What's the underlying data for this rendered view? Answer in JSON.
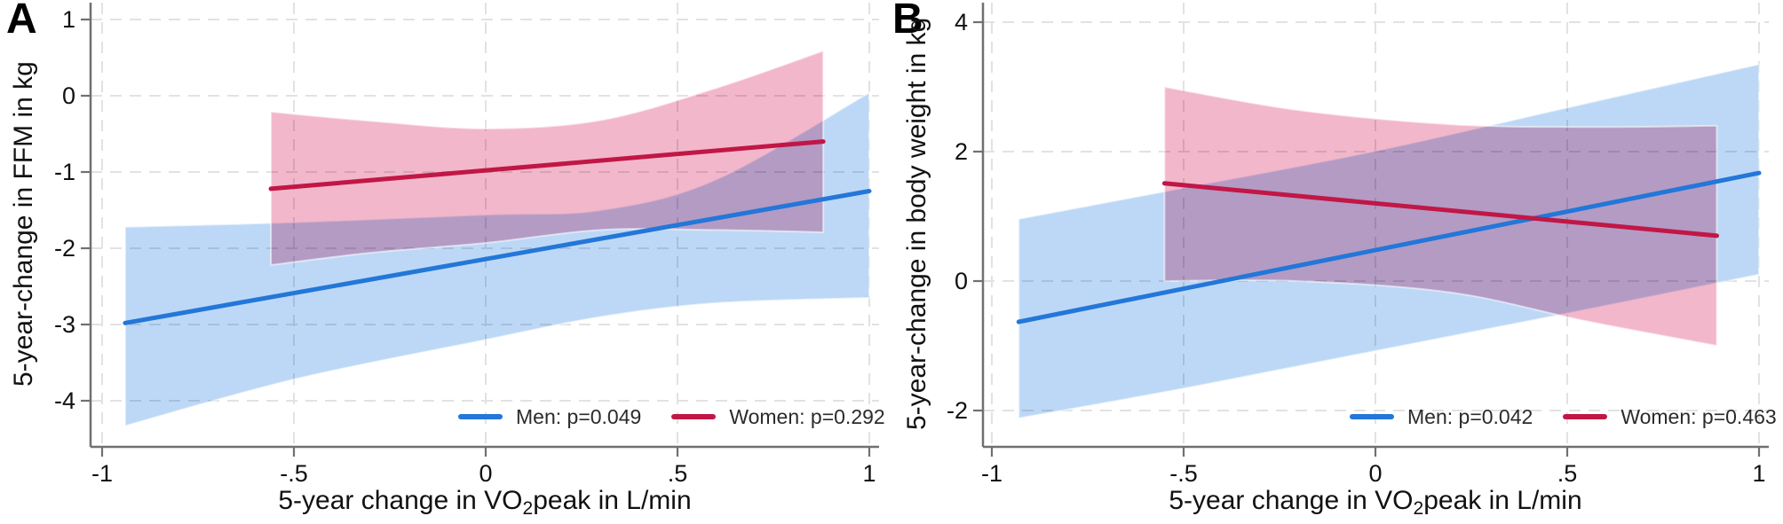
{
  "figure": {
    "background": "#ffffff",
    "colors": {
      "men_line": "#2377d8",
      "women_line": "#c11746",
      "men_band": "#bdd8f6",
      "women_band": "#f2b7cb",
      "grid": "#e2e2e2",
      "axis": "#707070",
      "tick_text": "#111111",
      "legend_text": "#2b2b2b"
    }
  },
  "chart_data": [
    {
      "type": "line",
      "panel": "A",
      "xlabel": "5-year change in VO₂peak in L/min",
      "xlabel_parts": {
        "pre": "5-year change in VO",
        "sub": "2",
        "post": "peak in L/min"
      },
      "ylabel": "5-year-change in FFM in kg",
      "xlim": [
        -1.03,
        1.03
      ],
      "ylim": [
        -4.6,
        1.22
      ],
      "grid": true,
      "legend_position": "inside bottom-right",
      "x_ticks": {
        "values": [
          -1,
          -0.5,
          0,
          0.5,
          1
        ],
        "labels": [
          "-1",
          "-.5",
          "0",
          ".5",
          "1"
        ]
      },
      "y_ticks": {
        "values": [
          1,
          0,
          -1,
          -2,
          -3,
          -4
        ],
        "labels": [
          "1",
          "0",
          "-1",
          "-2",
          "-3",
          "-4"
        ]
      },
      "series": [
        {
          "name": "Men",
          "label": "Men: p=0.049",
          "p_value": 0.049,
          "color": "#2377d8",
          "band_color": "#bdd8f6",
          "line": {
            "x": [
              -0.94,
              1.0
            ],
            "y": [
              -2.98,
              -1.25
            ]
          },
          "ci_band": {
            "x": [
              -0.94,
              -0.5,
              0.0,
              0.3,
              0.6,
              1.0
            ],
            "upper": [
              -1.72,
              -1.66,
              -1.56,
              -1.5,
              -1.1,
              0.04
            ],
            "lower": [
              -4.33,
              -3.72,
              -3.2,
              -2.9,
              -2.72,
              -2.65
            ]
          }
        },
        {
          "name": "Women",
          "label": "Women: p=0.292",
          "p_value": 0.292,
          "color": "#c11746",
          "band_color": "#f2b7cb",
          "line": {
            "x": [
              -0.56,
              0.88
            ],
            "y": [
              -1.22,
              -0.6
            ]
          },
          "ci_band": {
            "x": [
              -0.56,
              -0.3,
              0.0,
              0.3,
              0.6,
              0.88
            ],
            "upper": [
              -0.21,
              -0.33,
              -0.43,
              -0.32,
              0.1,
              0.59
            ],
            "lower": [
              -2.22,
              -2.06,
              -1.93,
              -1.76,
              -1.76,
              -1.79
            ]
          }
        }
      ]
    },
    {
      "type": "line",
      "panel": "B",
      "xlabel": "5-year change in VO₂peak in L/min",
      "xlabel_parts": {
        "pre": "5-year change in VO",
        "sub": "2",
        "post": "peak in L/min"
      },
      "ylabel": "5-year-change in body weight in kg",
      "xlim": [
        -1.03,
        1.03
      ],
      "ylim": [
        -2.56,
        4.3
      ],
      "grid": true,
      "legend_position": "inside bottom-right",
      "x_ticks": {
        "values": [
          -1,
          -0.5,
          0,
          0.5,
          1
        ],
        "labels": [
          "-1",
          "-.5",
          "0",
          ".5",
          "1"
        ]
      },
      "y_ticks": {
        "values": [
          4,
          2,
          0,
          -2
        ],
        "labels": [
          "4",
          "2",
          "0",
          "-2"
        ]
      },
      "series": [
        {
          "name": "Men",
          "label": "Men: p=0.042",
          "p_value": 0.042,
          "color": "#2377d8",
          "band_color": "#bdd8f6",
          "line": {
            "x": [
              -0.93,
              1.0
            ],
            "y": [
              -0.63,
              1.67
            ]
          },
          "ci_band": {
            "x": [
              -0.93,
              -0.5,
              0.0,
              0.5,
              1.0
            ],
            "upper": [
              0.96,
              1.44,
              2.01,
              2.68,
              3.35
            ],
            "lower": [
              -2.12,
              -1.66,
              -1.08,
              -0.5,
              0.1
            ]
          }
        },
        {
          "name": "Women",
          "label": "Women: p=0.463",
          "p_value": 0.463,
          "color": "#c11746",
          "band_color": "#f2b7cb",
          "line": {
            "x": [
              -0.55,
              0.89
            ],
            "y": [
              1.51,
              0.7
            ]
          },
          "ci_band": {
            "x": [
              -0.55,
              -0.2,
              0.2,
              0.55,
              0.89
            ],
            "upper": [
              3.0,
              2.64,
              2.42,
              2.38,
              2.4
            ],
            "lower": [
              0.0,
              0.0,
              -0.18,
              -0.62,
              -1.0
            ]
          }
        }
      ]
    }
  ]
}
